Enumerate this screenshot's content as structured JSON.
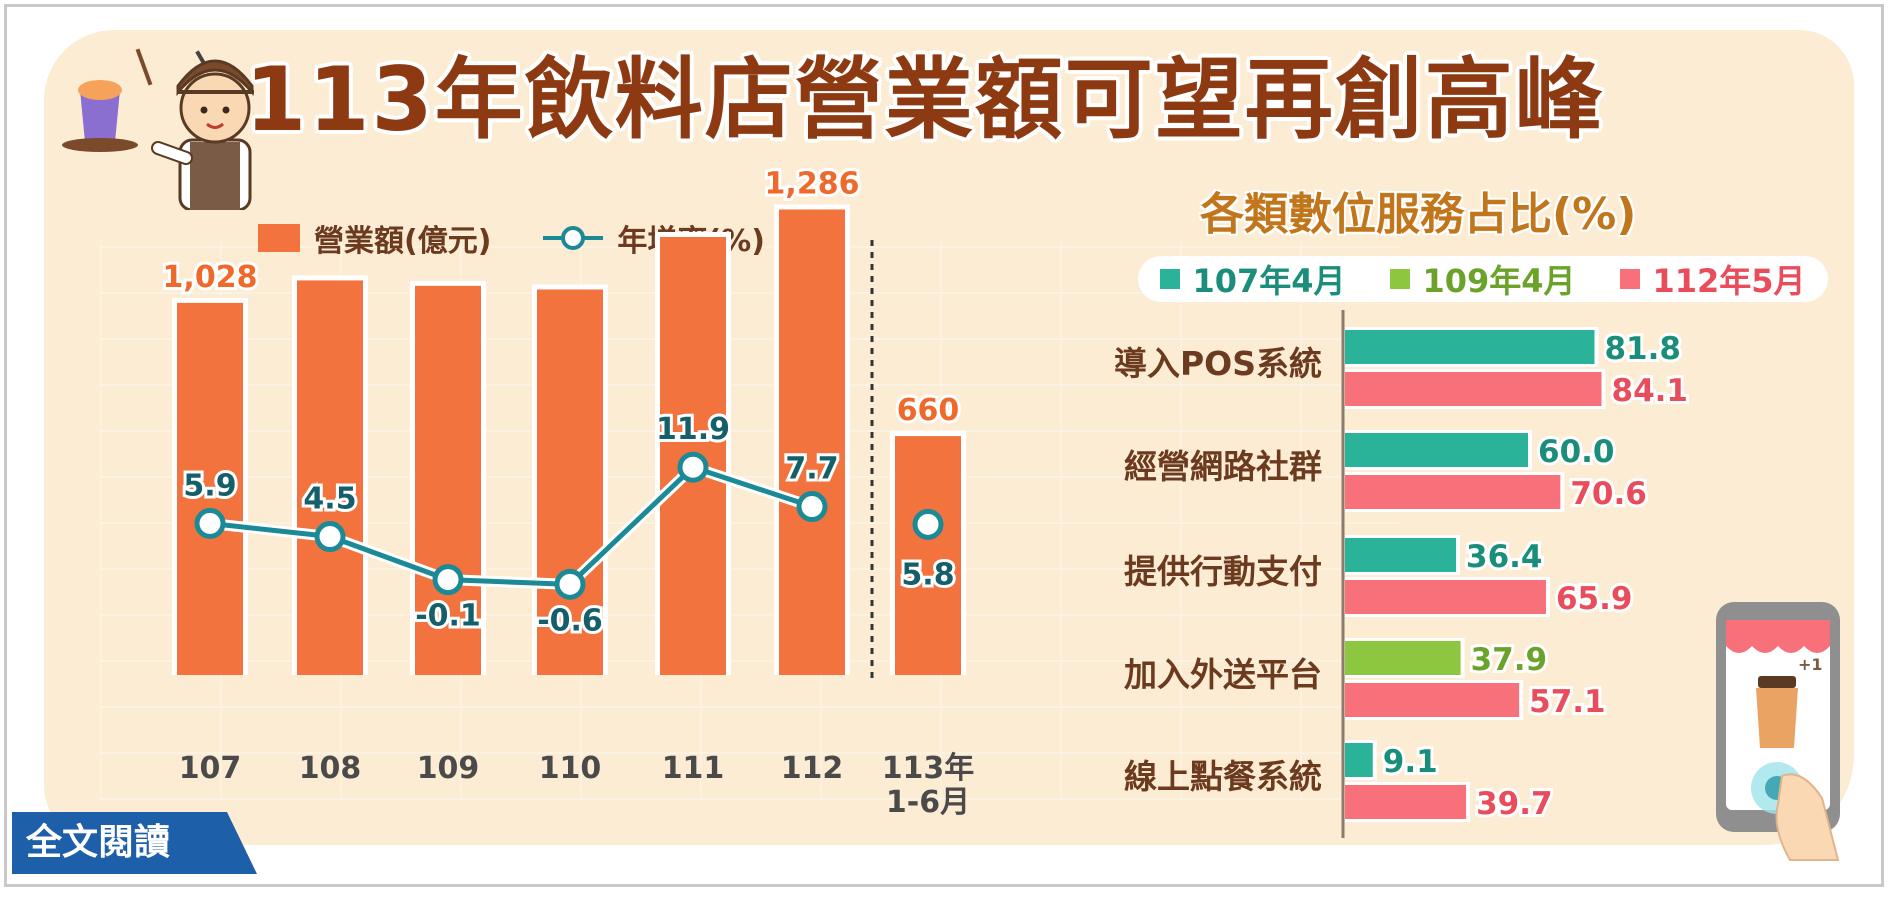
{
  "title": "113年飲料店營業額可望再創高峰",
  "footer_link": "全文閱讀",
  "chart_data": [
    {
      "type": "bar",
      "categories": [
        "107",
        "108",
        "109",
        "110",
        "111",
        "112",
        "113年 1-6月"
      ],
      "series": [
        {
          "name": "營業額(億元)",
          "type": "bar",
          "color": "#f3733f",
          "values": [
            1028,
            1090,
            1075,
            1065,
            1210,
            1286,
            660
          ],
          "labels": [
            "1,028",
            "",
            "",
            "",
            "",
            "1,286",
            "660"
          ]
        },
        {
          "name": "年增率(%)",
          "type": "line",
          "color": "#1c8a96",
          "values": [
            5.9,
            4.5,
            -0.1,
            -0.6,
            11.9,
            7.7,
            5.8
          ],
          "labels": [
            "5.9",
            "4.5",
            "-0.1",
            "-0.6",
            "11.9",
            "7.7",
            "5.8"
          ]
        }
      ],
      "legend": "top-left"
    },
    {
      "type": "bar",
      "orientation": "horizontal",
      "title": "各類數位服務占比(%)",
      "legend": "top",
      "legend_items": [
        {
          "name": "107年4月",
          "color": "#2bb39a"
        },
        {
          "name": "109年4月",
          "color": "#8dc63f"
        },
        {
          "name": "112年5月",
          "color": "#f7707a"
        }
      ],
      "categories": [
        "導入POS系統",
        "經營網路社群",
        "提供行動支付",
        "加入外送平台",
        "線上點餐系統"
      ],
      "rows": [
        {
          "a": {
            "series": "107年4月",
            "value": 81.8,
            "label": "81.8"
          },
          "b": {
            "series": "112年5月",
            "value": 84.1,
            "label": "84.1"
          }
        },
        {
          "a": {
            "series": "107年4月",
            "value": 60.0,
            "label": "60.0"
          },
          "b": {
            "series": "112年5月",
            "value": 70.6,
            "label": "70.6"
          }
        },
        {
          "a": {
            "series": "107年4月",
            "value": 36.4,
            "label": "36.4"
          },
          "b": {
            "series": "112年5月",
            "value": 65.9,
            "label": "65.9"
          }
        },
        {
          "a": {
            "series": "109年4月",
            "value": 37.9,
            "label": "37.9"
          },
          "b": {
            "series": "112年5月",
            "value": 57.1,
            "label": "57.1"
          }
        },
        {
          "a": {
            "series": "107年4月",
            "value": 9.1,
            "label": "9.1"
          },
          "b": {
            "series": "112年5月",
            "value": 39.7,
            "label": "39.7"
          }
        }
      ]
    }
  ]
}
